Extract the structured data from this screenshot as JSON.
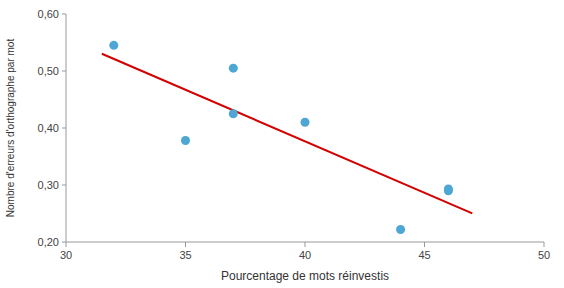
{
  "chart_data": {
    "type": "scatter",
    "xlabel": "Pourcentage de mots réinvestis",
    "ylabel": "Nombre d'erreurs d'orthographe par mot",
    "series": [
      {
        "type": "scatter",
        "color": "#4da6d4",
        "x": [
          32,
          35,
          37,
          37,
          40,
          44,
          46,
          46
        ],
        "values": [
          0.545,
          0.378,
          0.505,
          0.425,
          0.41,
          0.222,
          0.29,
          0.293
        ]
      },
      {
        "type": "line",
        "color": "#d40000",
        "x": [
          31.5,
          47.0
        ],
        "values": [
          0.5303,
          0.2502
        ]
      }
    ],
    "xlim": [
      30,
      50
    ],
    "ylim": [
      0.2,
      0.6
    ],
    "xticks": [
      30,
      35,
      40,
      45,
      50
    ],
    "yticks": [
      {
        "value": 0.2,
        "label": "0,20"
      },
      {
        "value": 0.3,
        "label": "0,30"
      },
      {
        "value": 0.4,
        "label": "0,40"
      },
      {
        "value": 0.5,
        "label": "0,50"
      },
      {
        "value": 0.6,
        "label": "0,60"
      }
    ],
    "grid": false
  }
}
